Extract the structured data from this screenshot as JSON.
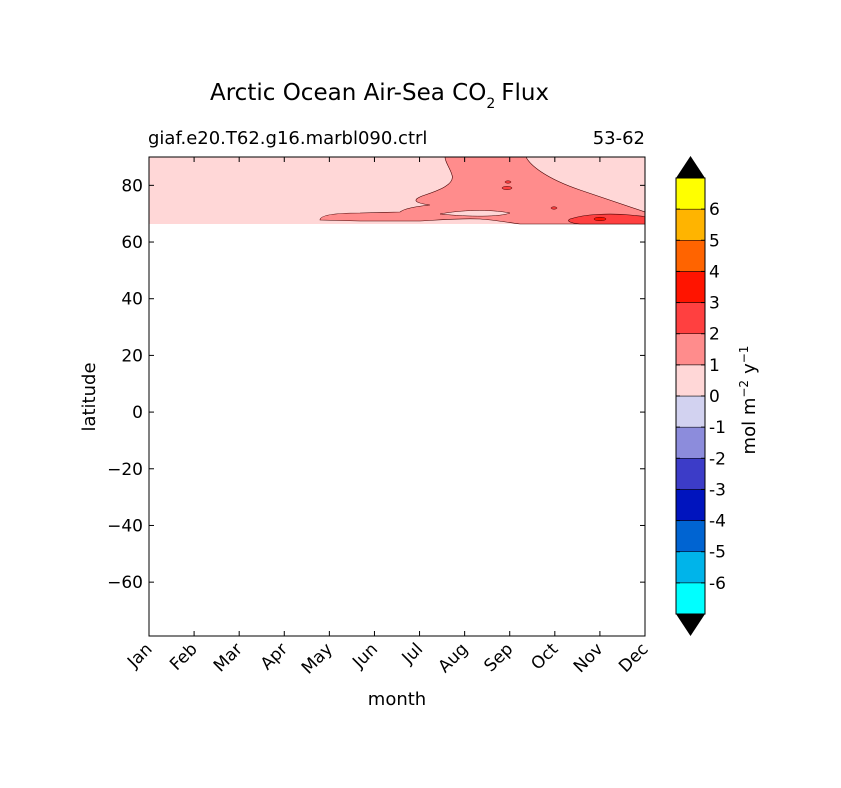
{
  "chart_data": {
    "type": "heatmap",
    "title_main": "Arctic Ocean Air-Sea CO",
    "title_sub": "2",
    "title_end": "Flux",
    "case_label": "giaf.e20.T62.g16.marbl090.ctrl",
    "years_label": "53-62",
    "xlabel": "month",
    "ylabel": "latitude",
    "x_categories": [
      "Jan",
      "Feb",
      "Mar",
      "Apr",
      "May",
      "Jun",
      "Jul",
      "Aug",
      "Sep",
      "Oct",
      "Nov",
      "Dec"
    ],
    "ylim": [
      -79,
      90
    ],
    "y_ticks": [
      80,
      60,
      40,
      20,
      0,
      -20,
      -40,
      -60
    ],
    "y_tick_labels": [
      "80",
      "60",
      "40",
      "20",
      "0",
      "−20",
      "−40",
      "−60"
    ],
    "data_lat_range": [
      66,
      90
    ],
    "colorbar": {
      "label_main": "mol m",
      "label_exp1": "−2",
      "label_mid": "y",
      "label_exp2": "−1",
      "levels": [
        "-6",
        "-5",
        "-4",
        "-3",
        "-2",
        "-1",
        "0",
        "1",
        "2",
        "3",
        "4",
        "5",
        "6"
      ],
      "colors": [
        "#00ffff",
        "#00b4ea",
        "#0064d2",
        "#0014be",
        "#3c3cc8",
        "#8c8cdc",
        "#d2d2f0",
        "#ffd7d7",
        "#ff8c8c",
        "#ff4040",
        "#ff1400",
        "#ff6400",
        "#ffb400",
        "#ffff00"
      ],
      "extend": "both"
    },
    "field_description_values": {
      "background_level": "0 to 1",
      "main_region": "1 to 2 (Aug-Nov, ~70-90N)",
      "peak_region": "2 to 3 (Nov-Dec, ~66-69N)"
    }
  }
}
